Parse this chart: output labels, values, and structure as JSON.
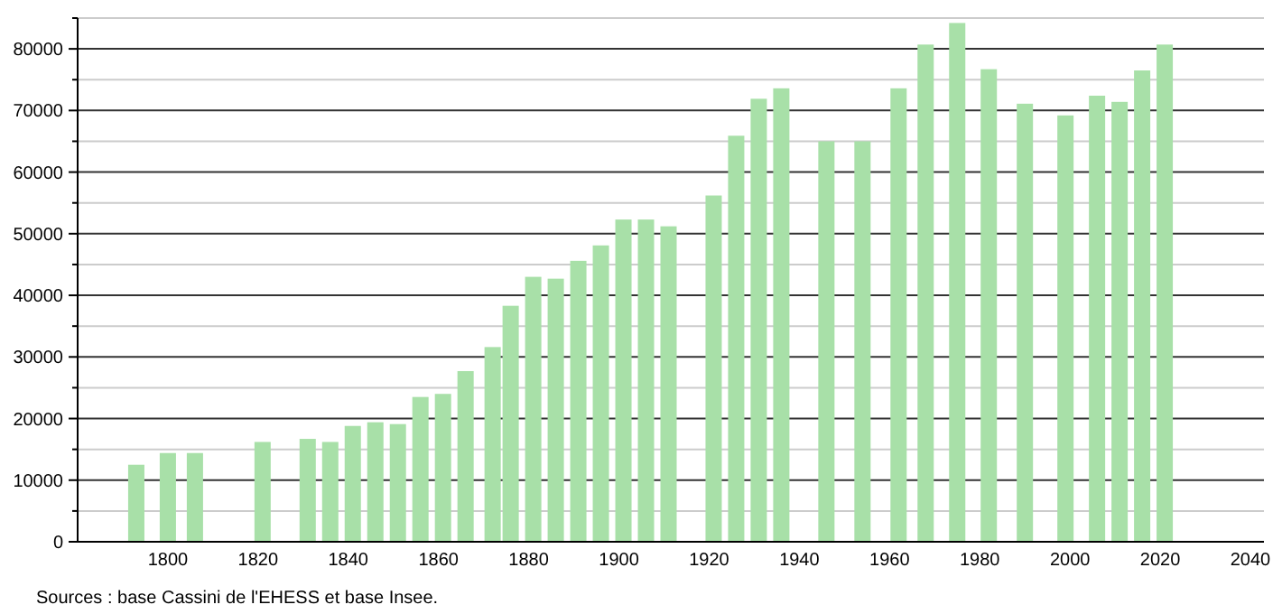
{
  "chart_data": {
    "type": "bar",
    "x": [
      1793,
      1800,
      1806,
      1821,
      1831,
      1836,
      1841,
      1846,
      1851,
      1856,
      1861,
      1866,
      1872,
      1876,
      1881,
      1886,
      1891,
      1896,
      1901,
      1906,
      1911,
      1921,
      1926,
      1931,
      1936,
      1946,
      1954,
      1962,
      1968,
      1975,
      1982,
      1990,
      1999,
      2006,
      2011,
      2016,
      2021
    ],
    "values": [
      12500,
      14400,
      14400,
      16200,
      16700,
      16200,
      18800,
      19400,
      19100,
      23500,
      24000,
      27700,
      31600,
      38300,
      43000,
      42700,
      45600,
      48100,
      52300,
      52300,
      51200,
      56200,
      65900,
      71900,
      73600,
      65000,
      65000,
      73600,
      80700,
      84200,
      76700,
      71100,
      69200,
      72400,
      71400,
      76500,
      80700
    ],
    "color": "#a8e0a8",
    "xlim": [
      1778,
      2043
    ],
    "xticks": [
      1800,
      1820,
      1840,
      1860,
      1880,
      1900,
      1920,
      1940,
      1960,
      1980,
      2000,
      2020,
      2040
    ],
    "ylim": [
      0,
      85000
    ],
    "yticks": [
      0,
      {
        "value": 5000,
        "label": null
      },
      10000,
      {
        "value": 15000,
        "label": null
      },
      20000,
      {
        "value": 25000,
        "label": null
      },
      30000,
      {
        "value": 35000,
        "label": null
      },
      40000,
      {
        "value": 45000,
        "label": null
      },
      50000,
      {
        "value": 55000,
        "label": null
      },
      60000,
      {
        "value": 65000,
        "label": null
      },
      70000,
      {
        "value": 75000,
        "label": null
      },
      80000,
      {
        "value": 85000,
        "label": null
      }
    ],
    "grid": "y",
    "annotations": [
      "Sources : base Cassini de l'EHESS et base Insee."
    ]
  }
}
